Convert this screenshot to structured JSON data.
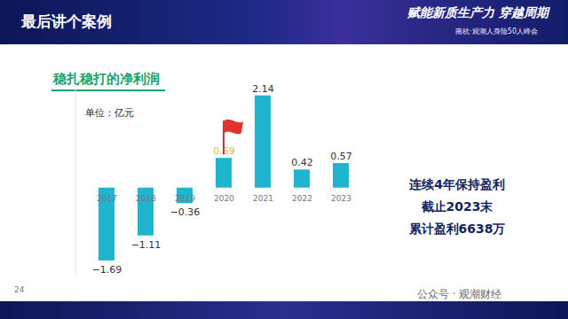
{
  "header": {
    "title": "最后讲个案例",
    "slogan": "赋能新质生产力 穿越周期",
    "subtitle": "南杭·观潮人身险50人峰会"
  },
  "chart_data": {
    "type": "bar",
    "title": "稳扎稳打的净利润",
    "unit": "单位：亿元",
    "categories": [
      "2017",
      "2018",
      "2019",
      "2020",
      "2021",
      "2022",
      "2023"
    ],
    "values": [
      -1.69,
      -1.11,
      -0.36,
      0.69,
      2.14,
      0.42,
      0.57
    ],
    "value_labels": [
      "−1.69",
      "−1.11",
      "−0.36",
      "0.69",
      "2.14",
      "0.42",
      "0.57"
    ],
    "color": "#1fb5cf",
    "ylim": [
      -2,
      2.4
    ],
    "data_labels": true,
    "tick_labels": "x"
  },
  "side_text": [
    "连续4年保持盈利",
    "截止2023末",
    "累计盈利6638万"
  ],
  "page_number": "24",
  "watermark": "公众号 · 观潮财经"
}
